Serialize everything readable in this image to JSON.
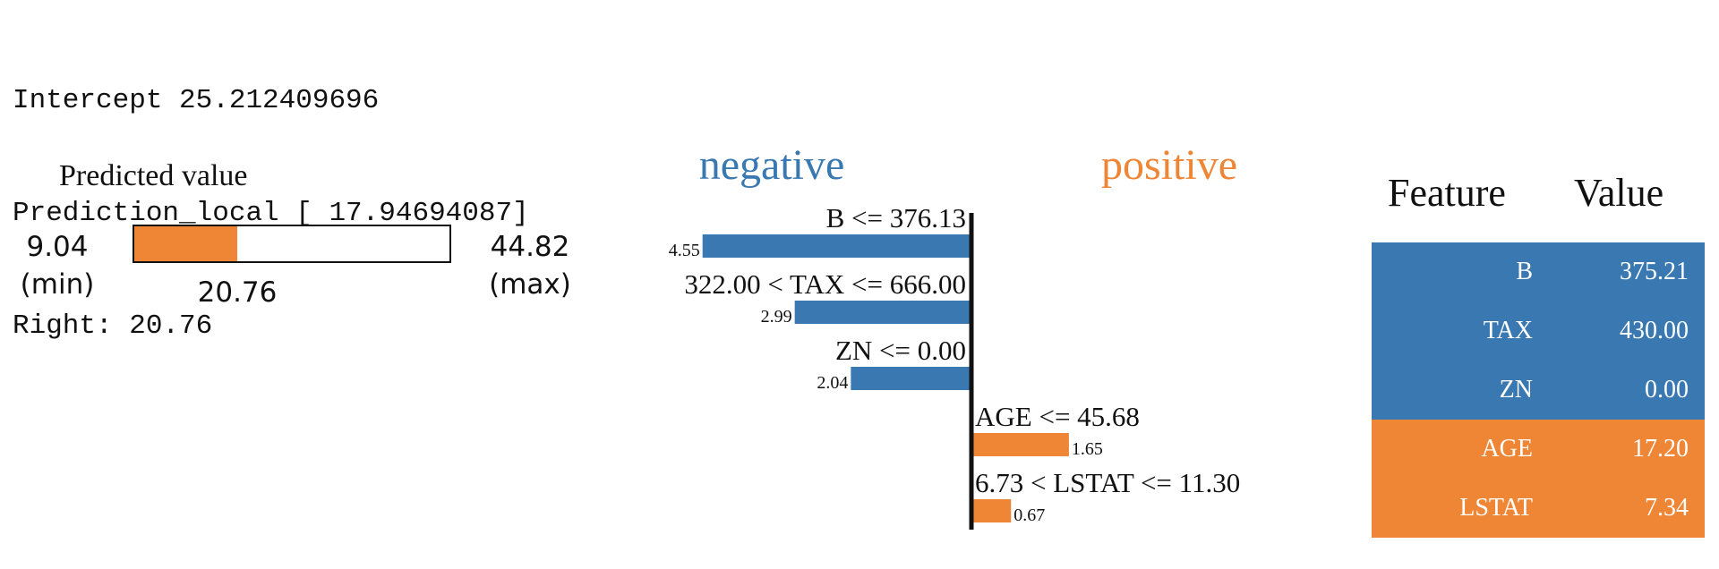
{
  "console": {
    "intercept": "Intercept 25.212409696",
    "prediction_local": "Prediction_local [ 17.94694087]",
    "right": "Right: 20.76"
  },
  "predicted_value": {
    "title": "Predicted value",
    "min_value": "9.04",
    "min_label": "(min)",
    "max_value": "44.82",
    "max_label": "(max)",
    "value": "20.76",
    "min": 9.04,
    "max": 44.82,
    "current": 20.76,
    "fill_color": "#ef8636"
  },
  "chart_data": {
    "type": "bar",
    "orientation": "horizontal",
    "legend": {
      "negative": "negative",
      "positive": "positive"
    },
    "colors": {
      "negative": "#3a78b1",
      "positive": "#ef8636"
    },
    "bars": [
      {
        "condition": "B <= 376.13",
        "value": -4.55,
        "label": "4.55"
      },
      {
        "condition": "322.00 < TAX <= 666.00",
        "value": -2.99,
        "label": "2.99"
      },
      {
        "condition": "ZN <= 0.00",
        "value": -2.04,
        "label": "2.04"
      },
      {
        "condition": "AGE <= 45.68",
        "value": 1.65,
        "label": "1.65"
      },
      {
        "condition": "6.73 < LSTAT <= 11.30",
        "value": 0.67,
        "label": "0.67"
      }
    ]
  },
  "table": {
    "header_feature": "Feature",
    "header_value": "Value",
    "rows": [
      {
        "feature": "B",
        "value": "375.21",
        "color": "#3a78b1"
      },
      {
        "feature": "TAX",
        "value": "430.00",
        "color": "#3a78b1"
      },
      {
        "feature": "ZN",
        "value": "0.00",
        "color": "#3a78b1"
      },
      {
        "feature": "AGE",
        "value": "17.20",
        "color": "#ef8636"
      },
      {
        "feature": "LSTAT",
        "value": "7.34",
        "color": "#ef8636"
      }
    ]
  }
}
